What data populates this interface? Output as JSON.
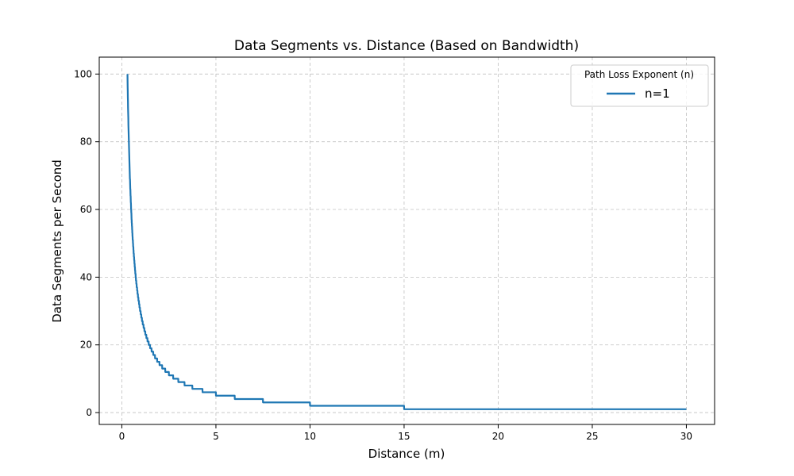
{
  "chart_data": {
    "type": "line",
    "title": "Data Segments vs. Distance (Based on Bandwidth)",
    "xlabel": "Distance (m)",
    "ylabel": "Data Segments per Second",
    "xlim": [
      -1.2,
      31.5
    ],
    "ylim": [
      -3.5,
      105
    ],
    "xticks": [
      0,
      5,
      10,
      15,
      20,
      25,
      30
    ],
    "yticks": [
      0,
      20,
      40,
      60,
      80,
      100
    ],
    "grid": true,
    "legend": {
      "title": "Path Loss Exponent (n)",
      "placement": "top-right"
    },
    "series": [
      {
        "name": "n=1",
        "color": "#1f77b4",
        "formula": "floor(30 / d)",
        "x_range": [
          0.3,
          30
        ],
        "style": "solid"
      }
    ]
  }
}
